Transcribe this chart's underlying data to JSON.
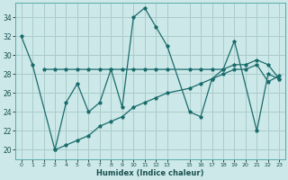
{
  "title": "",
  "xlabel": "Humidex (Indice chaleur)",
  "bg_color": "#cce8e8",
  "grid_color": "#aacccc",
  "line_color": "#1a6b6b",
  "xlim": [
    -0.5,
    23.5
  ],
  "ylim": [
    19.0,
    35.5
  ],
  "xticks": [
    0,
    1,
    2,
    3,
    4,
    5,
    6,
    7,
    8,
    9,
    10,
    11,
    12,
    13,
    15,
    16,
    17,
    18,
    19,
    20,
    21,
    22,
    23
  ],
  "yticks": [
    20,
    22,
    24,
    26,
    28,
    30,
    32,
    34
  ],
  "line1_x": [
    0,
    1,
    3,
    4,
    5,
    6,
    7,
    8,
    9,
    10,
    11,
    12,
    13,
    15,
    16,
    17,
    18,
    19,
    21,
    22,
    23
  ],
  "line1_y": [
    32,
    29,
    20,
    25,
    27,
    24,
    25,
    28.5,
    24.5,
    34,
    35,
    33,
    31,
    24,
    23.5,
    27.5,
    28.5,
    31.5,
    22,
    28,
    27.5
  ],
  "line2_x": [
    2,
    3,
    4,
    5,
    6,
    7,
    8,
    9,
    10,
    11,
    12,
    13,
    15,
    16,
    17,
    18,
    19,
    20,
    21,
    22,
    23
  ],
  "line2_y": [
    28.5,
    28.5,
    28.5,
    28.5,
    28.5,
    28.5,
    28.5,
    28.5,
    28.5,
    28.5,
    28.5,
    28.5,
    28.5,
    28.5,
    28.5,
    28.5,
    29.0,
    29.0,
    29.5,
    29.0,
    27.5
  ],
  "line3_x": [
    3,
    4,
    5,
    6,
    7,
    8,
    9,
    10,
    11,
    12,
    13,
    15,
    16,
    17,
    18,
    19,
    20,
    21,
    22,
    23
  ],
  "line3_y": [
    20,
    20.5,
    21,
    21.5,
    22.5,
    23,
    23.5,
    24.5,
    25,
    25.5,
    26,
    26.5,
    27,
    27.5,
    28,
    28.5,
    28.5,
    29,
    27.2,
    27.8
  ]
}
